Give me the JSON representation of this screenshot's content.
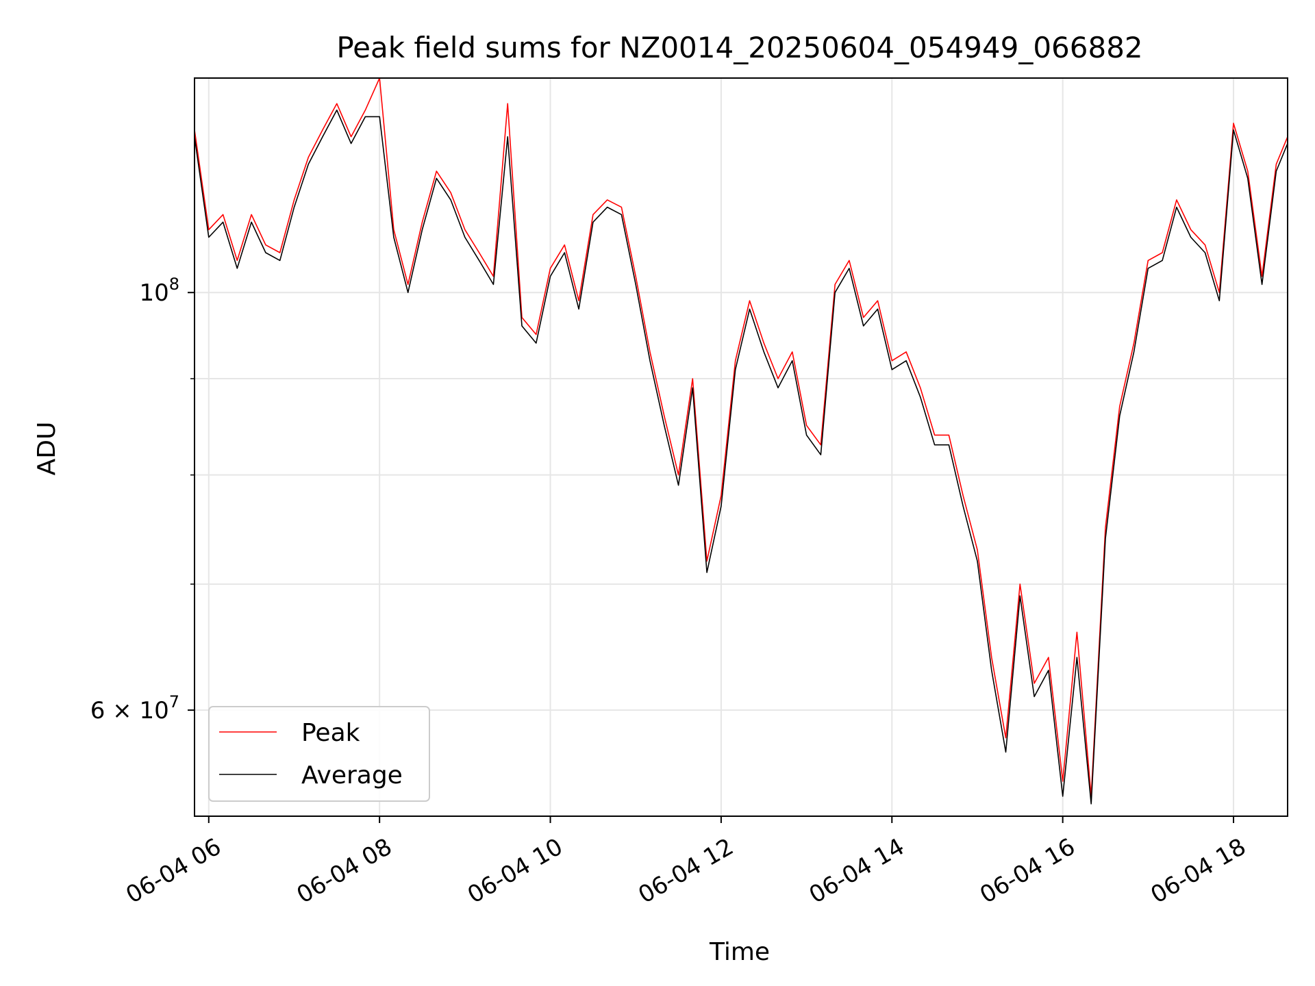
{
  "chart_data": {
    "type": "line",
    "title": "Peak field sums for NZ0014_20250604_054949_066882",
    "xlabel": "Time",
    "ylabel": "ADU",
    "y_scale": "log",
    "ylim": [
      52700000,
      130000000
    ],
    "xlim": [
      "2025-06-04 05:50",
      "2025-06-04 18:38"
    ],
    "grid": true,
    "legend": {
      "location": "lower-left",
      "entries": [
        "Peak",
        "Average"
      ]
    },
    "x_ticks": [
      {
        "value": "2025-06-04 06:00",
        "label": "06-04 06"
      },
      {
        "value": "2025-06-04 08:00",
        "label": "06-04 08"
      },
      {
        "value": "2025-06-04 10:00",
        "label": "06-04 10"
      },
      {
        "value": "2025-06-04 12:00",
        "label": "06-04 12"
      },
      {
        "value": "2025-06-04 14:00",
        "label": "06-04 14"
      },
      {
        "value": "2025-06-04 16:00",
        "label": "06-04 16"
      },
      {
        "value": "2025-06-04 18:00",
        "label": "06-04 18"
      }
    ],
    "y_ticks_major": [
      {
        "value": 60000000,
        "label_mantissa": "6 × 10",
        "label_exp": "7"
      },
      {
        "value": 100000000,
        "label_mantissa": "10",
        "label_exp": "8"
      }
    ],
    "y_ticks_minor": [
      70000000,
      80000000,
      90000000
    ],
    "series": [
      {
        "name": "Peak",
        "color": "#ff0000"
      },
      {
        "name": "Average",
        "color": "#000000"
      }
    ],
    "x": [
      "2025-06-04 05:50",
      "2025-06-04 06:00",
      "2025-06-04 06:10",
      "2025-06-04 06:20",
      "2025-06-04 06:30",
      "2025-06-04 06:40",
      "2025-06-04 06:50",
      "2025-06-04 07:00",
      "2025-06-04 07:10",
      "2025-06-04 07:20",
      "2025-06-04 07:30",
      "2025-06-04 07:40",
      "2025-06-04 07:50",
      "2025-06-04 08:00",
      "2025-06-04 08:10",
      "2025-06-04 08:20",
      "2025-06-04 08:30",
      "2025-06-04 08:40",
      "2025-06-04 08:50",
      "2025-06-04 09:00",
      "2025-06-04 09:10",
      "2025-06-04 09:20",
      "2025-06-04 09:30",
      "2025-06-04 09:40",
      "2025-06-04 09:50",
      "2025-06-04 10:00",
      "2025-06-04 10:10",
      "2025-06-04 10:20",
      "2025-06-04 10:30",
      "2025-06-04 10:40",
      "2025-06-04 10:50",
      "2025-06-04 11:00",
      "2025-06-04 11:10",
      "2025-06-04 11:20",
      "2025-06-04 11:30",
      "2025-06-04 11:40",
      "2025-06-04 11:50",
      "2025-06-04 12:00",
      "2025-06-04 12:10",
      "2025-06-04 12:20",
      "2025-06-04 12:30",
      "2025-06-04 12:40",
      "2025-06-04 12:50",
      "2025-06-04 13:00",
      "2025-06-04 13:10",
      "2025-06-04 13:20",
      "2025-06-04 13:30",
      "2025-06-04 13:40",
      "2025-06-04 13:50",
      "2025-06-04 14:00",
      "2025-06-04 14:10",
      "2025-06-04 14:20",
      "2025-06-04 14:30",
      "2025-06-04 14:40",
      "2025-06-04 14:50",
      "2025-06-04 15:00",
      "2025-06-04 15:10",
      "2025-06-04 15:20",
      "2025-06-04 15:30",
      "2025-06-04 15:40",
      "2025-06-04 15:50",
      "2025-06-04 16:00",
      "2025-06-04 16:10",
      "2025-06-04 16:20",
      "2025-06-04 16:30",
      "2025-06-04 16:40",
      "2025-06-04 16:50",
      "2025-06-04 17:00",
      "2025-06-04 17:10",
      "2025-06-04 17:20",
      "2025-06-04 17:30",
      "2025-06-04 17:40",
      "2025-06-04 17:50",
      "2025-06-04 18:00",
      "2025-06-04 18:10",
      "2025-06-04 18:20",
      "2025-06-04 18:30",
      "2025-06-04 18:38"
    ],
    "peak": [
      122000000,
      108000000,
      110000000,
      104000000,
      110000000,
      106000000,
      105000000,
      112000000,
      118000000,
      122000000,
      126000000,
      121000000,
      125000000,
      130000000,
      108000000,
      101000000,
      109000000,
      116000000,
      113000000,
      108000000,
      105000000,
      102000000,
      126000000,
      97000000,
      95000000,
      103000000,
      106000000,
      99000000,
      110000000,
      112000000,
      111000000,
      102000000,
      93000000,
      86000000,
      80000000,
      90000000,
      72000000,
      78000000,
      92000000,
      99000000,
      94000000,
      90000000,
      93000000,
      85000000,
      83000000,
      101000000,
      104000000,
      97000000,
      99000000,
      92000000,
      93000000,
      89000000,
      84000000,
      84000000,
      78000000,
      73000000,
      64000000,
      58000000,
      70000000,
      62000000,
      64000000,
      55000000,
      66000000,
      54000000,
      75000000,
      87000000,
      94000000,
      104000000,
      105000000,
      112000000,
      108000000,
      106000000,
      100000000,
      123000000,
      116000000,
      102000000,
      117000000,
      121000000
    ],
    "average": [
      121000000,
      107000000,
      109000000,
      103000000,
      109000000,
      105000000,
      104000000,
      111000000,
      117000000,
      121000000,
      125000000,
      120000000,
      124000000,
      124000000,
      107000000,
      100000000,
      108000000,
      115000000,
      112000000,
      107000000,
      104000000,
      101000000,
      121000000,
      96000000,
      94000000,
      102000000,
      105000000,
      98000000,
      109000000,
      111000000,
      110000000,
      101000000,
      92000000,
      85000000,
      79000000,
      89000000,
      71000000,
      77000000,
      91000000,
      98000000,
      93000000,
      89000000,
      92000000,
      84000000,
      82000000,
      100000000,
      103000000,
      96000000,
      98000000,
      91000000,
      92000000,
      88000000,
      83000000,
      83000000,
      77000000,
      72000000,
      63000000,
      57000000,
      69000000,
      61000000,
      63000000,
      54000000,
      64000000,
      53500000,
      74000000,
      86000000,
      93000000,
      103000000,
      104000000,
      111000000,
      107000000,
      105000000,
      99000000,
      122000000,
      115000000,
      101000000,
      116000000,
      120000000
    ]
  }
}
